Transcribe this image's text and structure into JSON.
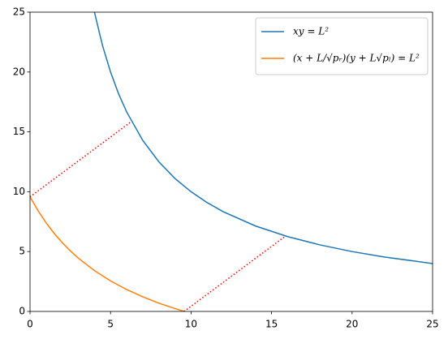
{
  "chart_data": {
    "type": "line",
    "xlim": [
      0,
      25
    ],
    "ylim": [
      0,
      25
    ],
    "xticks": [
      0,
      5,
      10,
      15,
      20,
      25
    ],
    "yticks": [
      0,
      5,
      10,
      15,
      20,
      25
    ],
    "legend": "upper right",
    "series": [
      {
        "name": "xy = L²",
        "color": "#1f77b4",
        "style": "solid",
        "x": [
          4,
          4.5,
          5,
          5.5,
          6,
          7,
          8,
          9,
          10,
          11,
          12,
          14,
          16,
          18,
          20,
          22,
          25
        ],
        "values": [
          25,
          22.22,
          20,
          18.18,
          16.67,
          14.29,
          12.5,
          11.11,
          10,
          9.09,
          8.33,
          7.14,
          6.25,
          5.56,
          5,
          4.55,
          4
        ]
      },
      {
        "name": "(x + L/√pᵣ)(y + L√pₗ) = L²",
        "color": "#ff7f0e",
        "style": "solid",
        "x": [
          0,
          0.5,
          1,
          1.5,
          2,
          2.5,
          3,
          4,
          5,
          6,
          7,
          8,
          9,
          9.57
        ],
        "values": [
          9.57,
          8.41,
          7.4,
          6.52,
          5.75,
          5.06,
          4.45,
          3.41,
          2.55,
          1.83,
          1.22,
          0.69,
          0.24,
          0
        ]
      },
      {
        "color": "#ff0000",
        "style": "dotted",
        "x": [
          0,
          6.3
        ],
        "values": [
          9.57,
          15.87
        ]
      },
      {
        "color": "#ff0000",
        "style": "dotted",
        "x": [
          9.57,
          15.87
        ],
        "values": [
          0,
          6.3
        ]
      }
    ]
  }
}
